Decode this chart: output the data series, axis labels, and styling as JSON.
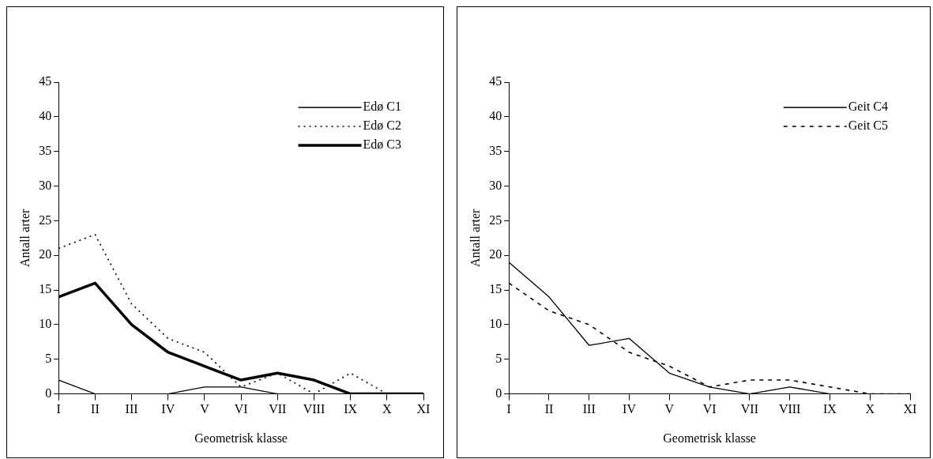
{
  "chart_data": [
    {
      "type": "line",
      "xlabel": "Geometrisk klasse",
      "ylabel": "Antall arter",
      "categories": [
        "I",
        "II",
        "III",
        "IV",
        "V",
        "VI",
        "VII",
        "VIII",
        "IX",
        "X",
        "XI"
      ],
      "ylim": [
        0,
        45
      ],
      "yticks": [
        0,
        5,
        10,
        15,
        20,
        25,
        30,
        35,
        40,
        45
      ],
      "legend": "top right",
      "grid": false,
      "marker": "none",
      "series": [
        {
          "name": "Edø C1",
          "color": "#000000",
          "line_style": "solid",
          "values": [
            2,
            0,
            0,
            0,
            1,
            1,
            0,
            0,
            0,
            0,
            0
          ]
        },
        {
          "name": "Edø C2",
          "color": "#000000",
          "line_style": "dotted",
          "values": [
            21,
            23,
            13,
            8,
            6,
            1,
            3,
            0,
            3,
            0,
            0
          ]
        },
        {
          "name": "Edø C3",
          "color": "#000000",
          "line_style": "solid",
          "values": [
            14,
            16,
            10,
            6,
            4,
            2,
            3,
            2,
            0,
            0,
            0
          ]
        }
      ]
    },
    {
      "type": "line",
      "xlabel": "Geometrisk klasse",
      "ylabel": "Antall arter",
      "categories": [
        "I",
        "II",
        "III",
        "IV",
        "V",
        "VI",
        "VII",
        "VIII",
        "IX",
        "X",
        "XI"
      ],
      "ylim": [
        0,
        45
      ],
      "yticks": [
        0,
        5,
        10,
        15,
        20,
        25,
        30,
        35,
        40,
        45
      ],
      "legend": "top right",
      "grid": false,
      "marker": "none",
      "series": [
        {
          "name": "Geit C4",
          "color": "#000000",
          "line_style": "solid",
          "values": [
            19,
            14,
            7,
            8,
            3,
            1,
            0,
            1,
            0,
            0,
            0
          ]
        },
        {
          "name": "Geit C5",
          "color": "#000000",
          "line_style": "dashed",
          "values": [
            16,
            12,
            10,
            6,
            4,
            1,
            2,
            2,
            1,
            0,
            0
          ]
        }
      ]
    }
  ]
}
